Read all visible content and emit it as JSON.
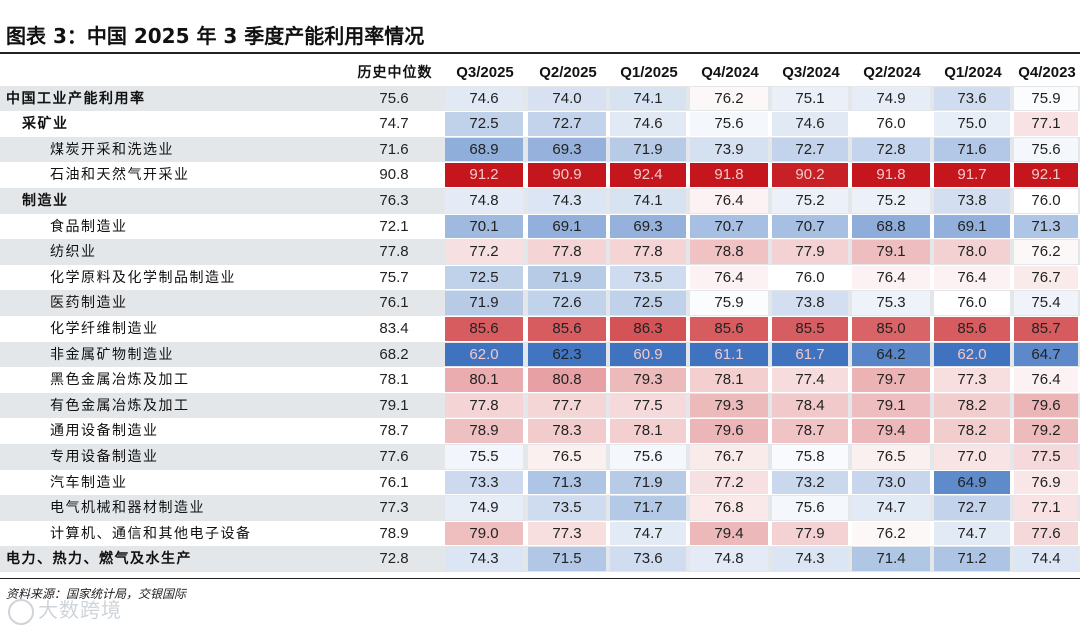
{
  "title": "图表 3：中国 2025 年 3 季度产能利用率情况",
  "source": "资料来源：国家统计局，交银国际",
  "watermark": "大数跨境",
  "colors": {
    "low": "#3f73c0",
    "mid": "#ffffff",
    "high": "#c4161c"
  },
  "chart_data": {
    "type": "table",
    "columns": [
      "历史中位数",
      "Q3/2025",
      "Q2/2025",
      "Q1/2025",
      "Q4/2024",
      "Q3/2024",
      "Q2/2024",
      "Q1/2024",
      "Q4/2023"
    ],
    "rows": [
      {
        "label": "中国工业产能利用率",
        "level": 0,
        "bold": true,
        "values": [
          75.6,
          74.6,
          74.0,
          74.1,
          76.2,
          75.1,
          74.9,
          73.6,
          75.9
        ]
      },
      {
        "label": "采矿业",
        "level": 1,
        "bold": true,
        "values": [
          74.7,
          72.5,
          72.7,
          74.6,
          75.6,
          74.6,
          76.0,
          75.0,
          77.1
        ]
      },
      {
        "label": "煤炭开采和洗选业",
        "level": 2,
        "bold": false,
        "values": [
          71.6,
          68.9,
          69.3,
          71.9,
          73.9,
          72.7,
          72.8,
          71.6,
          75.6
        ]
      },
      {
        "label": "石油和天然气开采业",
        "level": 2,
        "bold": false,
        "values": [
          90.8,
          91.2,
          90.9,
          92.4,
          91.8,
          90.2,
          91.8,
          91.7,
          92.1
        ]
      },
      {
        "label": "制造业",
        "level": 1,
        "bold": true,
        "values": [
          76.3,
          74.8,
          74.3,
          74.1,
          76.4,
          75.2,
          75.2,
          73.8,
          76.0
        ]
      },
      {
        "label": "食品制造业",
        "level": 2,
        "bold": false,
        "values": [
          72.1,
          70.1,
          69.1,
          69.3,
          70.7,
          70.7,
          68.8,
          69.1,
          71.3
        ]
      },
      {
        "label": "纺织业",
        "level": 2,
        "bold": false,
        "values": [
          77.8,
          77.2,
          77.8,
          77.8,
          78.8,
          77.9,
          79.1,
          78.0,
          76.2
        ]
      },
      {
        "label": "化学原料及化学制品制造业",
        "level": 2,
        "bold": false,
        "values": [
          75.7,
          72.5,
          71.9,
          73.5,
          76.4,
          76.0,
          76.4,
          76.4,
          76.7
        ]
      },
      {
        "label": "医药制造业",
        "level": 2,
        "bold": false,
        "values": [
          76.1,
          71.9,
          72.6,
          72.5,
          75.9,
          73.8,
          75.3,
          76.0,
          75.4
        ]
      },
      {
        "label": "化学纤维制造业",
        "level": 2,
        "bold": false,
        "values": [
          83.4,
          85.6,
          85.6,
          86.3,
          85.6,
          85.5,
          85.0,
          85.6,
          85.7
        ]
      },
      {
        "label": "非金属矿物制造业",
        "level": 2,
        "bold": false,
        "values": [
          68.2,
          62.0,
          62.3,
          60.9,
          61.1,
          61.7,
          64.2,
          62.0,
          64.7
        ]
      },
      {
        "label": "黑色金属冶炼及加工",
        "level": 2,
        "bold": false,
        "values": [
          78.1,
          80.1,
          80.8,
          79.3,
          78.1,
          77.4,
          79.7,
          77.3,
          76.4
        ]
      },
      {
        "label": "有色金属冶炼及加工",
        "level": 2,
        "bold": false,
        "values": [
          79.1,
          77.8,
          77.7,
          77.5,
          79.3,
          78.4,
          79.1,
          78.2,
          79.6
        ]
      },
      {
        "label": "通用设备制造业",
        "level": 2,
        "bold": false,
        "values": [
          78.7,
          78.9,
          78.3,
          78.1,
          79.6,
          78.7,
          79.4,
          78.2,
          79.2
        ]
      },
      {
        "label": "专用设备制造业",
        "level": 2,
        "bold": false,
        "values": [
          77.6,
          75.5,
          76.5,
          75.6,
          76.7,
          75.8,
          76.5,
          77.0,
          77.5
        ]
      },
      {
        "label": "汽车制造业",
        "level": 2,
        "bold": false,
        "values": [
          76.1,
          73.3,
          71.3,
          71.9,
          77.2,
          73.2,
          73.0,
          64.9,
          76.9
        ]
      },
      {
        "label": "电气机械和器材制造业",
        "level": 2,
        "bold": false,
        "values": [
          77.3,
          74.9,
          73.5,
          71.7,
          76.8,
          75.6,
          74.7,
          72.7,
          77.1
        ]
      },
      {
        "label": "计算机、通信和其他电子设备",
        "level": 2,
        "bold": false,
        "values": [
          78.9,
          79.0,
          77.3,
          74.7,
          79.4,
          77.9,
          76.2,
          74.7,
          77.6
        ]
      },
      {
        "label": "电力、热力、燃气及水生产",
        "level": 0,
        "bold": true,
        "values": [
          72.8,
          74.3,
          71.5,
          73.6,
          74.8,
          74.3,
          71.4,
          71.2,
          74.4
        ]
      }
    ]
  }
}
